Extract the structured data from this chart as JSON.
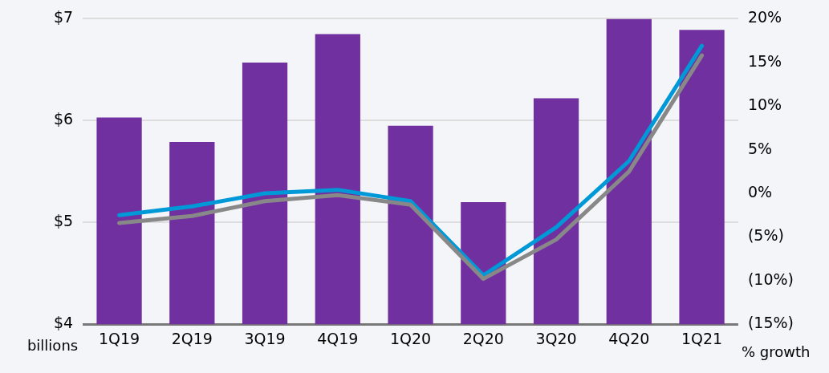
{
  "chart_data": {
    "type": "bar",
    "categories": [
      "1Q19",
      "2Q19",
      "3Q19",
      "4Q19",
      "1Q20",
      "2Q20",
      "3Q20",
      "4Q20",
      "1Q21"
    ],
    "series": [
      {
        "color": "#7030a0",
        "values": [
          6.03,
          5.79,
          6.57,
          6.85,
          5.95,
          5.2,
          6.22,
          7.0,
          6.89
        ]
      },
      {
        "type": "line",
        "axis": "y2",
        "color": "#888888",
        "values": [
          -3.4,
          -2.6,
          -0.9,
          -0.2,
          -1.3,
          -9.8,
          -5.3,
          2.5,
          15.8
        ]
      },
      {
        "type": "line",
        "axis": "y2",
        "color": "#0099d8",
        "values": [
          -2.5,
          -1.5,
          0.0,
          0.4,
          -0.9,
          -9.4,
          -3.9,
          3.7,
          16.9
        ]
      }
    ],
    "ylabel": "billions",
    "y2label": "% growth",
    "ylim": [
      4,
      7
    ],
    "yticks": [
      {
        "value": 4,
        "label": "$4"
      },
      {
        "value": 5,
        "label": "$5"
      },
      {
        "value": 6,
        "label": "$6"
      },
      {
        "value": 7,
        "label": "$7"
      }
    ],
    "y2lim": [
      -15,
      20
    ],
    "y2ticks": [
      {
        "value": -15,
        "label": "(15%)"
      },
      {
        "value": -10,
        "label": "(10%)"
      },
      {
        "value": -5,
        "label": "(5%)"
      },
      {
        "value": 0,
        "label": "0%"
      },
      {
        "value": 5,
        "label": "5%"
      },
      {
        "value": 10,
        "label": "10%"
      },
      {
        "value": 15,
        "label": "15%"
      },
      {
        "value": 20,
        "label": "20%"
      }
    ],
    "grid": "y",
    "legend": false,
    "marker": "none",
    "line_style": "solid"
  }
}
